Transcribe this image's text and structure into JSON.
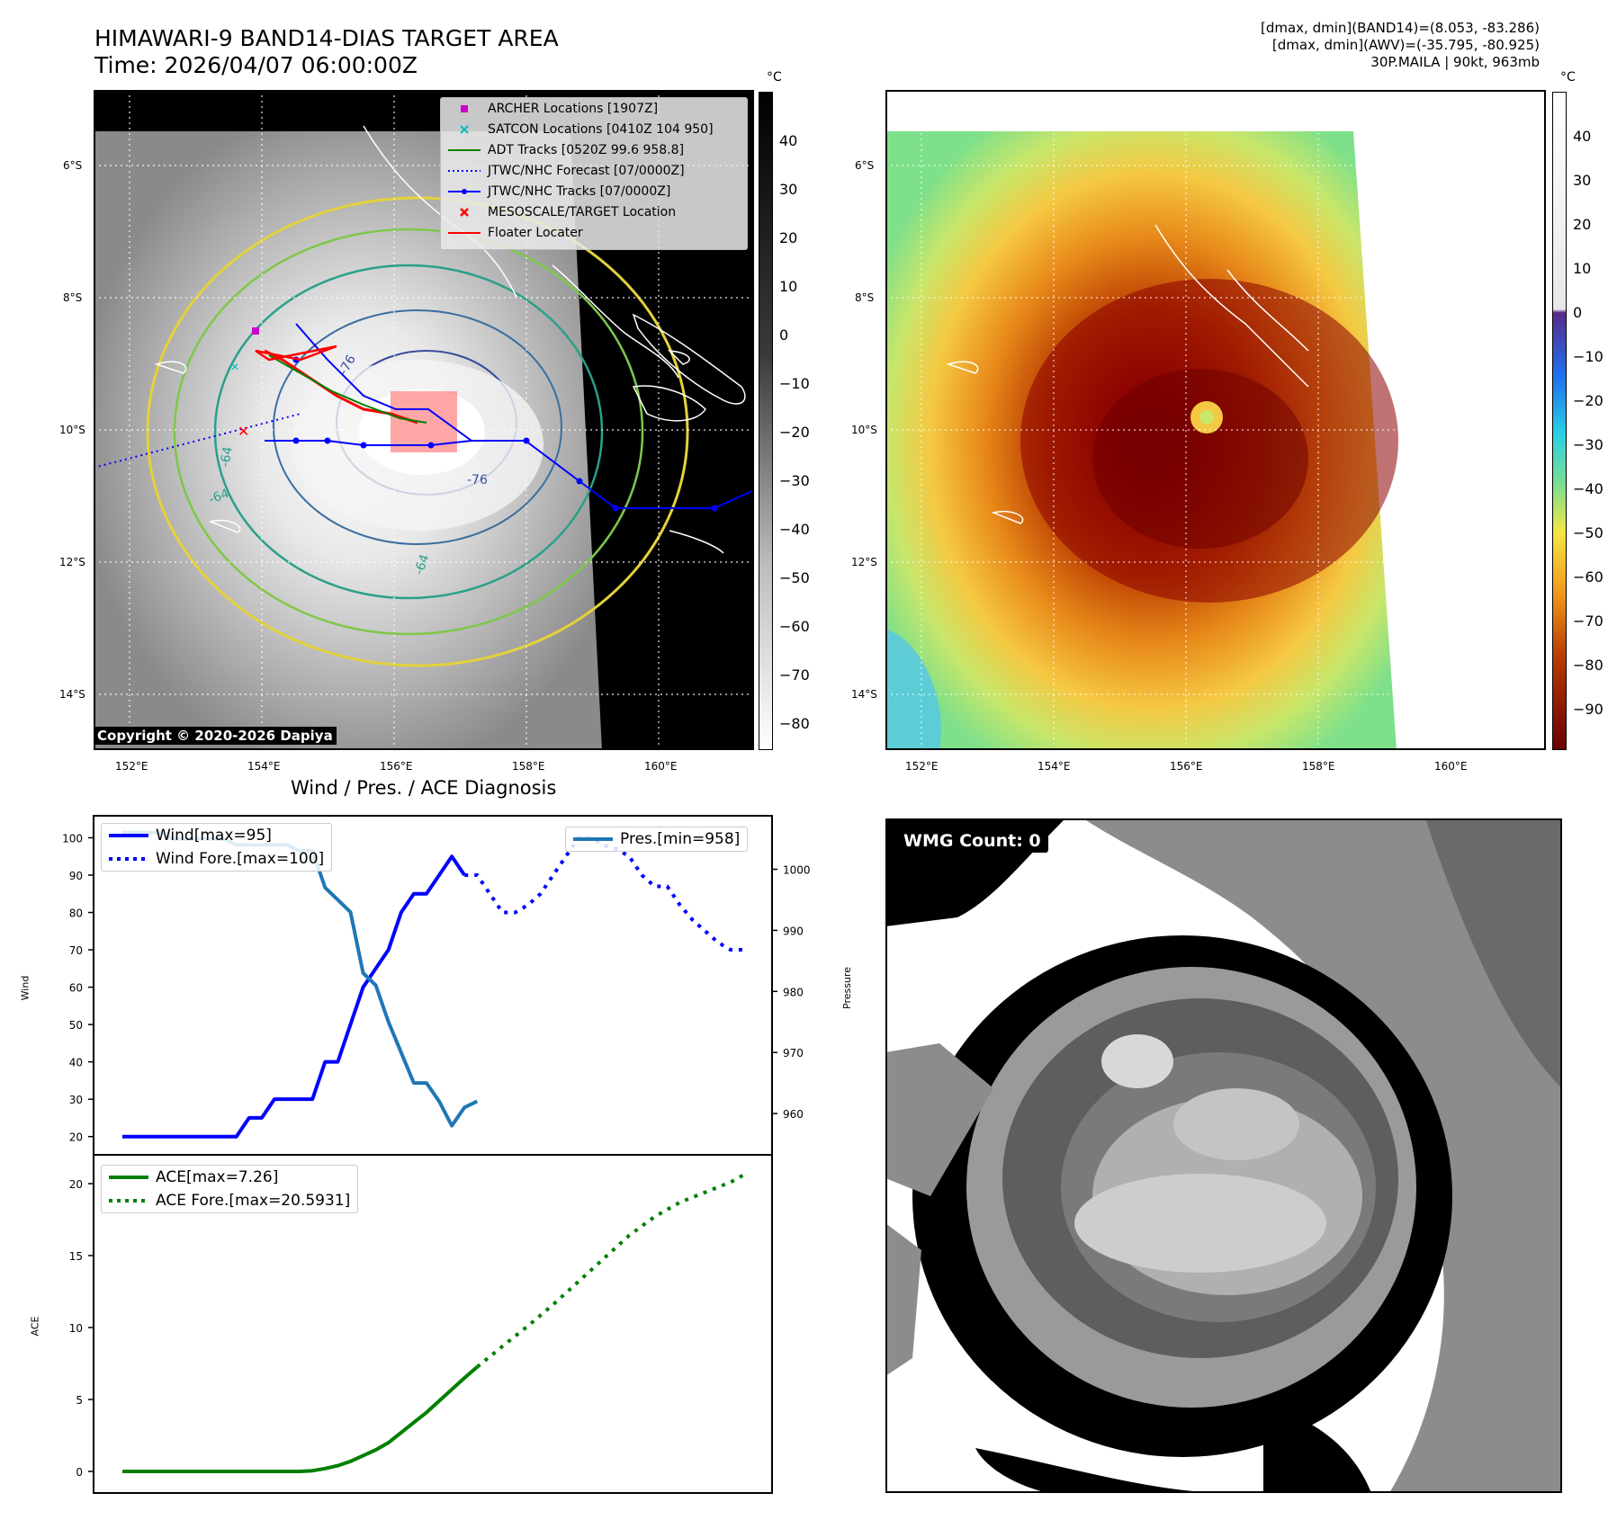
{
  "header": {
    "title_line1": "HIMAWARI-9 BAND14-DIAS TARGET AREA",
    "title_line2": "Time: 2026/04/07 06:00:00Z",
    "info_line1": "[dmax, dmin](BAND14)=(8.053, -83.286)",
    "info_line2": "[dmax, dmin](AWV)=(-35.795, -80.925)",
    "info_line3": "30P.MAILA | 90kt, 963mb"
  },
  "map": {
    "lat_labels": [
      "6°S",
      "8°S",
      "10°S",
      "12°S",
      "14°S"
    ],
    "lon_labels": [
      "152°E",
      "154°E",
      "156°E",
      "158°E",
      "160°E"
    ],
    "copyright": "Copyright © 2020-2026 Dapiya",
    "contour_labels": [
      "-76",
      "-64",
      "-64",
      "-64",
      "-76"
    ],
    "legend": [
      {
        "label": "ARCHER Locations [1907Z]",
        "color": "#cc00cc",
        "symbol": "square"
      },
      {
        "label": "SATCON Locations [0410Z 104 950]",
        "color": "#00bcbc",
        "symbol": "x"
      },
      {
        "label": "ADT Tracks [0520Z 99.6 958.8]",
        "color": "#008000",
        "symbol": "line"
      },
      {
        "label": "JTWC/NHC Forecast [07/0000Z]",
        "color": "#0000ff",
        "symbol": "dotted"
      },
      {
        "label": "JTWC/NHC Tracks [07/0000Z]",
        "color": "#0000ff",
        "symbol": "line-dot"
      },
      {
        "label": "MESOSCALE/TARGET Location",
        "color": "#ff0000",
        "symbol": "x"
      },
      {
        "label": "Floater Locater",
        "color": "#ff0000",
        "symbol": "line"
      }
    ]
  },
  "colorbar_gray": {
    "unit": "°C",
    "ticks": [
      "40",
      "30",
      "20",
      "10",
      "0",
      "−10",
      "−20",
      "−30",
      "−40",
      "−50",
      "−60",
      "−70",
      "−80"
    ]
  },
  "colorbar_color": {
    "unit": "°C",
    "ticks": [
      "40",
      "30",
      "20",
      "10",
      "0",
      "−10",
      "−20",
      "−30",
      "−40",
      "−50",
      "−60",
      "−70",
      "−80",
      "−90"
    ]
  },
  "wmg": {
    "label": "WMG Count: 0"
  },
  "chart_data": [
    {
      "type": "line",
      "title": "Wind / Pres. / ACE Diagnosis",
      "ylabel": "Wind",
      "y2label": "Pressure",
      "ylim": [
        18,
        103
      ],
      "y2lim": [
        955,
        1007
      ],
      "yticks": [
        "20",
        "30",
        "40",
        "50",
        "60",
        "70",
        "80",
        "90",
        "100"
      ],
      "y2ticks": [
        "960",
        "970",
        "980",
        "990",
        "1000"
      ],
      "x": [
        0,
        1,
        2,
        3,
        4,
        5,
        6,
        7,
        8,
        9,
        10,
        11,
        12,
        13,
        14,
        15,
        16,
        17,
        18,
        19,
        20,
        21,
        22,
        23,
        24,
        25,
        26,
        27,
        28,
        29,
        30,
        31,
        32,
        33,
        34,
        35,
        36,
        37,
        38,
        39,
        40,
        41,
        42,
        43,
        44,
        45,
        46,
        47,
        48,
        49
      ],
      "series": [
        {
          "name": "Wind[max=95]",
          "axis": "left",
          "style": "solid",
          "color": "#0000ff",
          "x": [
            0,
            1,
            2,
            3,
            4,
            5,
            6,
            7,
            8,
            9,
            10,
            11,
            12,
            13,
            14,
            15,
            16,
            17,
            18,
            19,
            20,
            21,
            22,
            23,
            24,
            25,
            26,
            27
          ],
          "values": [
            20,
            20,
            20,
            20,
            20,
            20,
            20,
            20,
            20,
            20,
            25,
            25,
            30,
            30,
            30,
            30,
            40,
            40,
            50,
            60,
            65,
            70,
            80,
            85,
            85,
            90,
            95,
            90
          ]
        },
        {
          "name": "Wind Fore.[max=100]",
          "axis": "left",
          "style": "dotted",
          "color": "#0000ff",
          "x": [
            27,
            28,
            29,
            30,
            31,
            32,
            33,
            34,
            35,
            36,
            37,
            38,
            39,
            40,
            41,
            42,
            43,
            44,
            45,
            46,
            47,
            48,
            49
          ],
          "values": [
            90,
            90,
            85,
            80,
            80,
            82,
            85,
            90,
            95,
            100,
            100,
            98,
            97,
            95,
            90,
            87,
            87,
            82,
            78,
            75,
            72,
            70,
            70
          ]
        },
        {
          "name": "Pres.[min=958]",
          "axis": "right",
          "style": "solid",
          "color": "#1f77b4",
          "x": [
            0,
            1,
            2,
            3,
            4,
            5,
            6,
            7,
            8,
            9,
            10,
            11,
            12,
            13,
            14,
            15,
            16,
            17,
            18,
            19,
            20,
            21,
            22,
            23,
            24,
            25,
            26,
            27,
            28
          ],
          "values": [
            1006,
            1006,
            1006,
            1006,
            1005,
            1005,
            1005,
            1005,
            1005,
            1004,
            1004,
            1004,
            1004,
            1004,
            1003,
            1003,
            997,
            995,
            993,
            983,
            981,
            975,
            970,
            965,
            965,
            962,
            958,
            961,
            962
          ]
        }
      ]
    },
    {
      "type": "line",
      "ylabel": "ACE",
      "ylim": [
        -1,
        21.5
      ],
      "yticks": [
        "0",
        "5",
        "10",
        "15",
        "20"
      ],
      "series": [
        {
          "name": "ACE[max=7.26]",
          "style": "solid",
          "color": "#008000",
          "x": [
            0,
            2,
            4,
            6,
            8,
            10,
            12,
            14,
            15,
            16,
            17,
            18,
            19,
            20,
            21,
            22,
            23,
            24,
            25,
            26,
            27,
            28
          ],
          "values": [
            0,
            0,
            0,
            0,
            0,
            0,
            0,
            0,
            0.05,
            0.2,
            0.4,
            0.7,
            1.1,
            1.5,
            2.0,
            2.7,
            3.4,
            4.1,
            4.9,
            5.7,
            6.5,
            7.26
          ]
        },
        {
          "name": "ACE Fore.[max=20.5931]",
          "style": "dotted",
          "color": "#008000",
          "x": [
            28,
            30,
            32,
            34,
            36,
            38,
            40,
            42,
            44,
            46,
            48,
            49
          ],
          "values": [
            7.26,
            8.7,
            10.1,
            11.6,
            13.2,
            14.8,
            16.4,
            17.7,
            18.7,
            19.4,
            20.1,
            20.59
          ]
        }
      ]
    }
  ]
}
